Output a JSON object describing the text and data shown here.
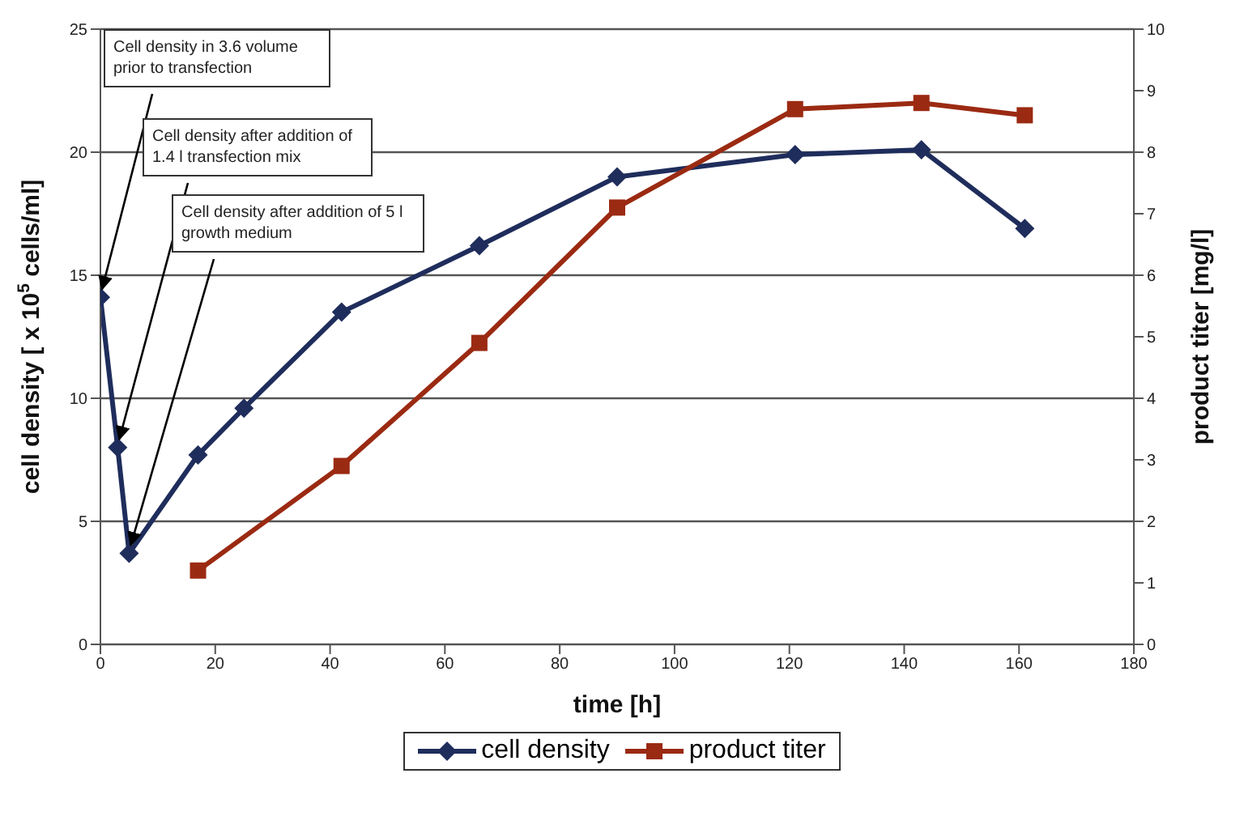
{
  "chart_data": {
    "type": "line",
    "xlabel": "time [h]",
    "ylabel": "cell density [ x 10$^{5}$ cells/ml]",
    "y2label": "product titer [mg/l]",
    "xlim": [
      0,
      180
    ],
    "xticks": [
      0,
      20,
      40,
      60,
      80,
      100,
      120,
      140,
      160,
      180
    ],
    "ylim": [
      0,
      25
    ],
    "yticks": [
      0,
      5,
      10,
      15,
      20,
      25
    ],
    "y2lim": [
      0,
      10
    ],
    "y2ticks": [
      0,
      1,
      2,
      3,
      4,
      5,
      6,
      7,
      8,
      9,
      10
    ],
    "grid": "y",
    "legend": "bottom",
    "series": [
      {
        "name": "cell density",
        "color": "#1f2d5c",
        "marker": "diamond",
        "x": [
          0,
          3,
          5,
          17,
          25,
          42,
          66,
          90,
          121,
          143,
          161
        ],
        "values": [
          14.1,
          8,
          3.7,
          7.7,
          9.6,
          13.5,
          16.2,
          19,
          19.9,
          20.1,
          16.9
        ]
      },
      {
        "name": "product titer",
        "color": "#9b2a12",
        "marker": "square",
        "axis": "y2",
        "x": [
          17,
          42,
          66,
          90,
          121,
          143,
          161
        ],
        "values": [
          1.2,
          2.9,
          4.9,
          7.1,
          8.7,
          8.8,
          8.6
        ]
      }
    ],
    "annotations": [
      {
        "text": "Cell density in 3.6 volume prior to transfection",
        "x": 0,
        "y": 14.1
      },
      {
        "text": "Cell density after addition of 1.4 l transfection mix",
        "x": 3,
        "y": 8
      },
      {
        "text": "Cell density after addition of 5 l growth medium",
        "x": 5,
        "y": 3.7
      }
    ]
  }
}
